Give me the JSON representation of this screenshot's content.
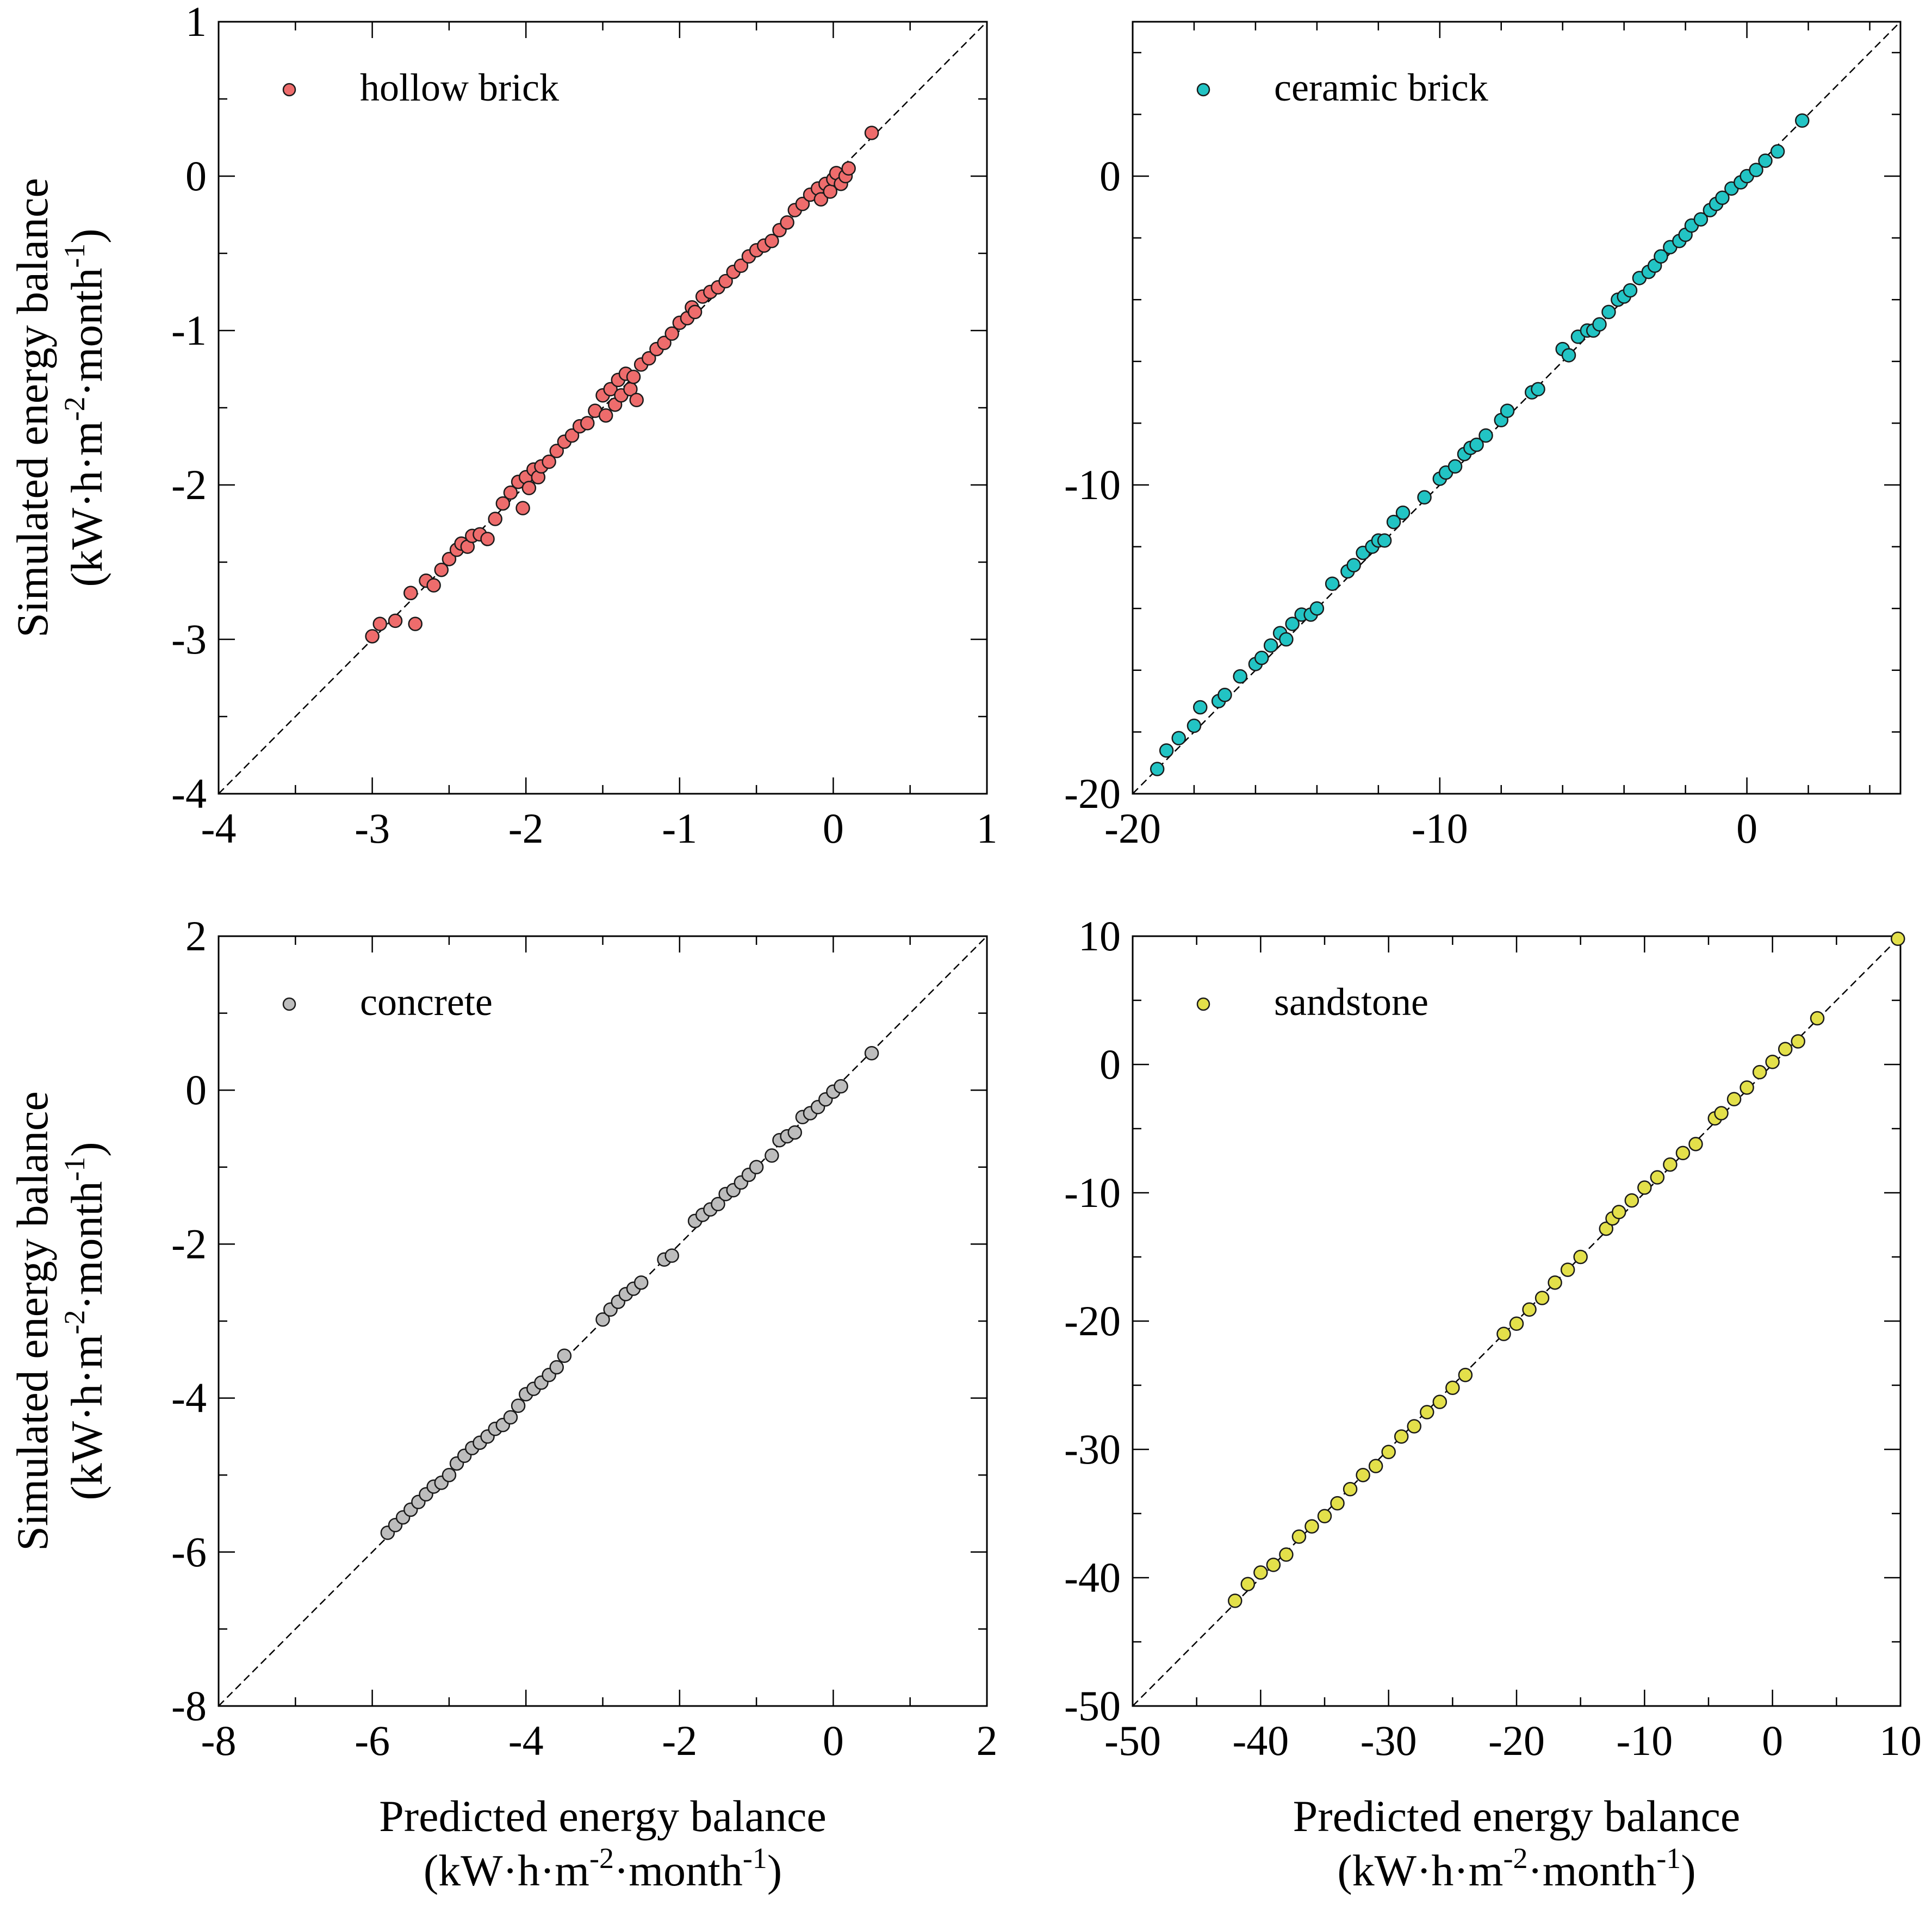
{
  "chart_data": [
    {
      "type": "scatter",
      "legend": "hollow brick",
      "legend_position": "top-left",
      "color": "#ee6c6c",
      "xlim": [
        -4,
        1
      ],
      "ylim": [
        -4,
        1
      ],
      "xticks": [
        "-4",
        "-3",
        "-2",
        "-1",
        "0",
        "1"
      ],
      "yticks": [
        "-4",
        "-3",
        "-2",
        "-1",
        "0",
        "1"
      ],
      "xlabel": "",
      "xlabel_units": "",
      "ylabel": "Simulated energy balance",
      "ylabel_units": [
        "(kW·h·m",
        "-2",
        "·month",
        "-1",
        ")"
      ],
      "x": [
        -3.0,
        -2.95,
        -2.85,
        -2.75,
        -2.72,
        -2.65,
        -2.6,
        -2.55,
        -2.5,
        -2.45,
        -2.42,
        -2.38,
        -2.35,
        -2.3,
        -2.25,
        -2.2,
        -2.15,
        -2.1,
        -2.05,
        -2.02,
        -2.0,
        -1.98,
        -1.95,
        -1.92,
        -1.9,
        -1.85,
        -1.8,
        -1.75,
        -1.7,
        -1.65,
        -1.6,
        -1.55,
        -1.5,
        -1.48,
        -1.45,
        -1.42,
        -1.4,
        -1.38,
        -1.35,
        -1.32,
        -1.3,
        -1.28,
        -1.25,
        -1.2,
        -1.15,
        -1.1,
        -1.05,
        -1.0,
        -0.95,
        -0.92,
        -0.9,
        -0.85,
        -0.8,
        -0.75,
        -0.7,
        -0.65,
        -0.6,
        -0.55,
        -0.5,
        -0.45,
        -0.4,
        -0.35,
        -0.3,
        -0.25,
        -0.2,
        -0.15,
        -0.1,
        -0.08,
        -0.05,
        -0.02,
        0.0,
        0.02,
        0.05,
        0.08,
        0.1,
        0.25
      ],
      "y": [
        -2.98,
        -2.9,
        -2.88,
        -2.7,
        -2.9,
        -2.62,
        -2.65,
        -2.55,
        -2.48,
        -2.42,
        -2.38,
        -2.4,
        -2.33,
        -2.32,
        -2.35,
        -2.22,
        -2.12,
        -2.05,
        -1.98,
        -2.15,
        -1.95,
        -2.02,
        -1.9,
        -1.95,
        -1.88,
        -1.85,
        -1.78,
        -1.72,
        -1.68,
        -1.62,
        -1.6,
        -1.52,
        -1.42,
        -1.55,
        -1.38,
        -1.48,
        -1.32,
        -1.42,
        -1.28,
        -1.38,
        -1.3,
        -1.45,
        -1.22,
        -1.18,
        -1.12,
        -1.08,
        -1.02,
        -0.95,
        -0.92,
        -0.85,
        -0.88,
        -0.78,
        -0.75,
        -0.72,
        -0.68,
        -0.62,
        -0.58,
        -0.52,
        -0.48,
        -0.45,
        -0.42,
        -0.35,
        -0.3,
        -0.22,
        -0.18,
        -0.12,
        -0.08,
        -0.15,
        -0.05,
        -0.1,
        -0.02,
        0.02,
        -0.05,
        0.0,
        0.05,
        0.28
      ]
    },
    {
      "type": "scatter",
      "legend": "ceramic brick",
      "legend_position": "top-left",
      "color": "#22c4c4",
      "xlim": [
        -20,
        5
      ],
      "ylim": [
        -20,
        5
      ],
      "xticks": [
        "-20",
        "-10",
        "0"
      ],
      "yticks": [
        "-20",
        "-10",
        "0"
      ],
      "xlabel": "",
      "xlabel_units": "",
      "ylabel": "",
      "ylabel_units": "",
      "x": [
        -19.2,
        -18.9,
        -18.5,
        -18.0,
        -17.8,
        -17.2,
        -17.0,
        -16.5,
        -16.0,
        -15.8,
        -15.5,
        -15.2,
        -15.0,
        -14.8,
        -14.5,
        -14.2,
        -14.0,
        -13.5,
        -13.0,
        -12.8,
        -12.5,
        -12.2,
        -12.0,
        -11.8,
        -11.5,
        -11.2,
        -10.5,
        -10.0,
        -9.8,
        -9.5,
        -9.2,
        -9.0,
        -8.8,
        -8.5,
        -8.0,
        -7.8,
        -7.0,
        -6.8,
        -6.0,
        -5.8,
        -5.5,
        -5.2,
        -5.0,
        -4.8,
        -4.5,
        -4.2,
        -4.0,
        -3.8,
        -3.5,
        -3.2,
        -3.0,
        -2.8,
        -2.5,
        -2.2,
        -2.0,
        -1.8,
        -1.5,
        -1.2,
        -1.0,
        -0.8,
        -0.5,
        -0.2,
        0.0,
        0.3,
        0.6,
        1.0,
        1.8
      ],
      "y": [
        -19.2,
        -18.6,
        -18.2,
        -17.8,
        -17.2,
        -17.0,
        -16.8,
        -16.2,
        -15.8,
        -15.6,
        -15.2,
        -14.8,
        -15.0,
        -14.5,
        -14.2,
        -14.2,
        -14.0,
        -13.2,
        -12.8,
        -12.6,
        -12.2,
        -12.0,
        -11.8,
        -11.8,
        -11.2,
        -10.9,
        -10.4,
        -9.8,
        -9.6,
        -9.4,
        -9.0,
        -8.8,
        -8.7,
        -8.4,
        -7.9,
        -7.6,
        -7.0,
        -6.9,
        -5.6,
        -5.8,
        -5.2,
        -5.0,
        -5.0,
        -4.8,
        -4.4,
        -4.0,
        -3.9,
        -3.7,
        -3.3,
        -3.1,
        -2.9,
        -2.6,
        -2.3,
        -2.1,
        -1.9,
        -1.6,
        -1.4,
        -1.1,
        -0.9,
        -0.7,
        -0.4,
        -0.2,
        0.0,
        0.2,
        0.5,
        0.8,
        1.8
      ]
    },
    {
      "type": "scatter",
      "legend": "concrete",
      "legend_position": "top-left",
      "color": "#bdbdbd",
      "xlim": [
        -8,
        2
      ],
      "ylim": [
        -8,
        2
      ],
      "xticks": [
        "-8",
        "-6",
        "-4",
        "-2",
        "0",
        "2"
      ],
      "yticks": [
        "-8",
        "-6",
        "-4",
        "-2",
        "0",
        "2"
      ],
      "xlabel": "Predicted energy balance",
      "xlabel_units": [
        "(kW·h·m",
        "-2",
        "·month",
        "-1",
        ")"
      ],
      "ylabel": "Simulated energy balance",
      "ylabel_units": [
        "(kW·h·m",
        "-2",
        "·month",
        "-1",
        ")"
      ],
      "x": [
        -5.8,
        -5.7,
        -5.6,
        -5.5,
        -5.4,
        -5.3,
        -5.2,
        -5.1,
        -5.0,
        -4.9,
        -4.8,
        -4.7,
        -4.6,
        -4.5,
        -4.4,
        -4.3,
        -4.2,
        -4.1,
        -4.0,
        -3.9,
        -3.8,
        -3.7,
        -3.6,
        -3.5,
        -3.0,
        -2.9,
        -2.8,
        -2.7,
        -2.6,
        -2.5,
        -2.2,
        -2.1,
        -1.8,
        -1.7,
        -1.6,
        -1.5,
        -1.4,
        -1.3,
        -1.2,
        -1.1,
        -1.0,
        -0.8,
        -0.7,
        -0.6,
        -0.5,
        -0.4,
        -0.3,
        -0.2,
        -0.1,
        0.0,
        0.1,
        0.5
      ],
      "y": [
        -5.75,
        -5.65,
        -5.55,
        -5.45,
        -5.35,
        -5.25,
        -5.15,
        -5.1,
        -5.0,
        -4.85,
        -4.75,
        -4.65,
        -4.58,
        -4.5,
        -4.4,
        -4.35,
        -4.25,
        -4.1,
        -3.95,
        -3.88,
        -3.8,
        -3.7,
        -3.6,
        -3.45,
        -2.98,
        -2.85,
        -2.75,
        -2.65,
        -2.58,
        -2.5,
        -2.2,
        -2.15,
        -1.7,
        -1.62,
        -1.55,
        -1.48,
        -1.35,
        -1.3,
        -1.2,
        -1.1,
        -1.0,
        -0.85,
        -0.65,
        -0.6,
        -0.55,
        -0.35,
        -0.3,
        -0.22,
        -0.12,
        -0.02,
        0.05,
        0.48
      ]
    },
    {
      "type": "scatter",
      "legend": "sandstone",
      "legend_position": "top-left",
      "color": "#e3e04a",
      "xlim": [
        -50,
        10
      ],
      "ylim": [
        -50,
        10
      ],
      "xticks": [
        "-50",
        "-40",
        "-30",
        "-20",
        "-10",
        "0",
        "10"
      ],
      "yticks": [
        "-50",
        "-40",
        "-30",
        "-20",
        "-10",
        "0",
        "10"
      ],
      "xlabel": "Predicted energy balance",
      "xlabel_units": [
        "(kW·h·m",
        "-2",
        "·month",
        "-1",
        ")"
      ],
      "ylabel": "",
      "ylabel_units": "",
      "x": [
        -42,
        -41,
        -40,
        -39,
        -38,
        -37,
        -36,
        -35,
        -34,
        -33,
        -32,
        -31,
        -30,
        -29,
        -28,
        -27,
        -26,
        -25,
        -24,
        -21,
        -20,
        -19,
        -18,
        -17,
        -16,
        -15,
        -13,
        -12.5,
        -12,
        -11,
        -10,
        -9,
        -8,
        -7,
        -6,
        -4.5,
        -4,
        -3,
        -2,
        -1,
        0,
        1,
        2,
        3.5,
        9.8
      ],
      "y": [
        -41.8,
        -40.5,
        -39.6,
        -39,
        -38.2,
        -36.8,
        -36,
        -35.2,
        -34.2,
        -33.1,
        -32,
        -31.3,
        -30.2,
        -29,
        -28.2,
        -27.1,
        -26.3,
        -25.2,
        -24.2,
        -21,
        -20.2,
        -19.1,
        -18.2,
        -17,
        -16,
        -15,
        -12.8,
        -12,
        -11.5,
        -10.6,
        -9.6,
        -8.8,
        -7.8,
        -6.9,
        -6.2,
        -4.2,
        -3.8,
        -2.7,
        -1.8,
        -0.6,
        0.2,
        1.2,
        1.8,
        3.6,
        9.8
      ]
    }
  ]
}
